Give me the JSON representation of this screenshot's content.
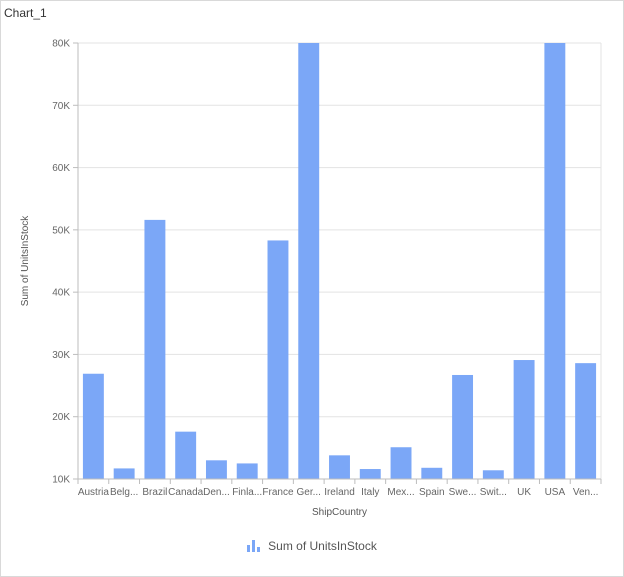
{
  "window": {
    "title": "Chart_1"
  },
  "legend": {
    "icon": "bar-chart-icon",
    "label": "Sum of UnitsInStock"
  },
  "colors": {
    "bar": "#7ba7f7",
    "grid": "#e3e3e3",
    "axis": "#bdbdbd"
  },
  "chart_data": {
    "type": "bar",
    "title": "Chart_1",
    "xlabel": "ShipCountry",
    "ylabel": "Sum of UnitsInStock",
    "categories": [
      "Austria",
      "Belg...",
      "Brazil",
      "Canada",
      "Den...",
      "Finla...",
      "France",
      "Ger...",
      "Ireland",
      "Italy",
      "Mex...",
      "Spain",
      "Swe...",
      "Swit...",
      "UK",
      "USA",
      "Ven..."
    ],
    "series": [
      {
        "name": "Sum of UnitsInStock",
        "values": [
          26900,
          11700,
          51600,
          17600,
          13000,
          12500,
          48300,
          80000,
          13800,
          11600,
          15100,
          11800,
          26700,
          11400,
          29100,
          80000,
          28600
        ]
      }
    ],
    "ylim": [
      10000,
      80000
    ],
    "yticks": [
      10000,
      20000,
      30000,
      40000,
      50000,
      60000,
      70000,
      80000
    ],
    "ytick_labels": [
      "10K",
      "20K",
      "30K",
      "40K",
      "50K",
      "60K",
      "70K",
      "80K"
    ],
    "grid": true,
    "legend_position": "bottom"
  }
}
